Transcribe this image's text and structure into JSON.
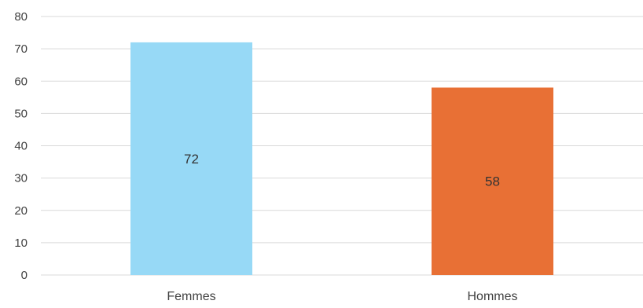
{
  "chart_data": {
    "type": "bar",
    "title": "",
    "xlabel": "",
    "ylabel": "",
    "categories": [
      "Femmes",
      "Hommes"
    ],
    "values": [
      72,
      58
    ],
    "data_labels": [
      "72",
      "58"
    ],
    "colors": [
      "#97d9f6",
      "#e87035"
    ],
    "ylim": [
      0,
      80
    ],
    "yticks": [
      0,
      10,
      20,
      30,
      40,
      50,
      60,
      70,
      80
    ],
    "ytick_labels": [
      "0",
      "10",
      "20",
      "30",
      "40",
      "50",
      "60",
      "70",
      "80"
    ],
    "grid": true,
    "legend": "none"
  }
}
